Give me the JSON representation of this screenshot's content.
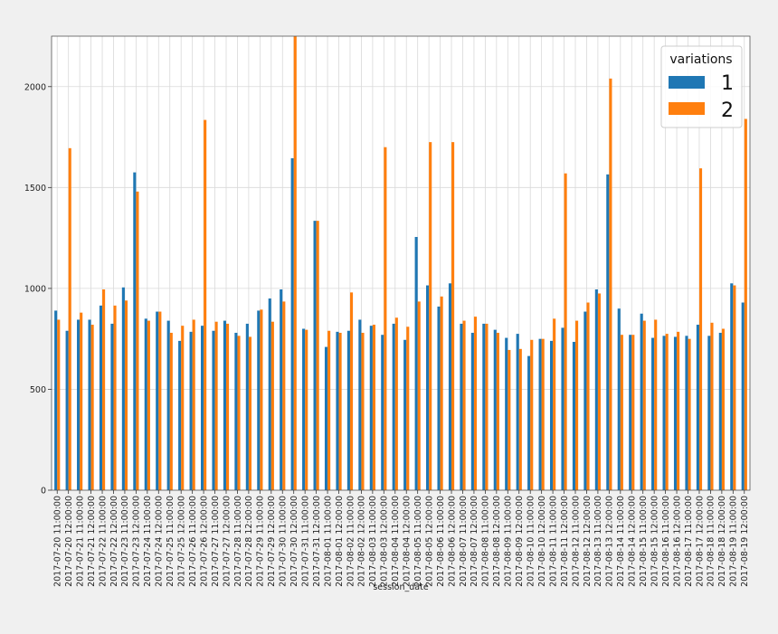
{
  "chart_data": {
    "type": "bar",
    "xlabel": "session_date",
    "ylabel": "",
    "ylim": [
      0,
      2250
    ],
    "yticks": [
      0,
      500,
      1000,
      1500,
      2000
    ],
    "grid": true,
    "legend": {
      "title": "variations",
      "placement": "top-right"
    },
    "categories": [
      "2017-07-20 11:00:00",
      "2017-07-20 12:00:00",
      "2017-07-21 11:00:00",
      "2017-07-21 12:00:00",
      "2017-07-22 11:00:00",
      "2017-07-22 12:00:00",
      "2017-07-23 11:00:00",
      "2017-07-23 12:00:00",
      "2017-07-24 11:00:00",
      "2017-07-24 12:00:00",
      "2017-07-25 11:00:00",
      "2017-07-25 12:00:00",
      "2017-07-26 11:00:00",
      "2017-07-26 12:00:00",
      "2017-07-27 11:00:00",
      "2017-07-27 12:00:00",
      "2017-07-28 11:00:00",
      "2017-07-28 12:00:00",
      "2017-07-29 11:00:00",
      "2017-07-29 12:00:00",
      "2017-07-30 11:00:00",
      "2017-07-30 12:00:00",
      "2017-07-31 11:00:00",
      "2017-07-31 12:00:00",
      "2017-08-01 11:00:00",
      "2017-08-01 12:00:00",
      "2017-08-02 11:00:00",
      "2017-08-02 12:00:00",
      "2017-08-03 11:00:00",
      "2017-08-03 12:00:00",
      "2017-08-04 11:00:00",
      "2017-08-04 12:00:00",
      "2017-08-05 11:00:00",
      "2017-08-05 12:00:00",
      "2017-08-06 11:00:00",
      "2017-08-06 12:00:00",
      "2017-08-07 11:00:00",
      "2017-08-07 12:00:00",
      "2017-08-08 11:00:00",
      "2017-08-08 12:00:00",
      "2017-08-09 11:00:00",
      "2017-08-09 12:00:00",
      "2017-08-10 11:00:00",
      "2017-08-10 12:00:00",
      "2017-08-11 11:00:00",
      "2017-08-11 12:00:00",
      "2017-08-12 11:00:00",
      "2017-08-12 12:00:00",
      "2017-08-13 11:00:00",
      "2017-08-13 12:00:00",
      "2017-08-14 11:00:00",
      "2017-08-14 12:00:00",
      "2017-08-15 11:00:00",
      "2017-08-15 12:00:00",
      "2017-08-16 11:00:00",
      "2017-08-16 12:00:00",
      "2017-08-17 11:00:00",
      "2017-08-17 12:00:00",
      "2017-08-18 11:00:00",
      "2017-08-18 12:00:00",
      "2017-08-19 11:00:00",
      "2017-08-19 12:00:00"
    ],
    "series": [
      {
        "name": "1",
        "color": "#1f77b4",
        "values": [
          890,
          790,
          845,
          845,
          915,
          825,
          1005,
          1575,
          850,
          885,
          840,
          740,
          785,
          815,
          790,
          840,
          780,
          825,
          890,
          950,
          995,
          1645,
          800,
          1335,
          710,
          785,
          790,
          845,
          815,
          770,
          825,
          745,
          1255,
          1015,
          910,
          1025,
          825,
          780,
          825,
          795,
          755,
          775,
          665,
          750,
          740,
          805,
          735,
          885,
          995,
          1565,
          900,
          770,
          875,
          755,
          765,
          760,
          765,
          820,
          765,
          780,
          1025,
          930
        ]
      },
      {
        "name": "2",
        "color": "#ff7f0e",
        "values": [
          845,
          1695,
          880,
          820,
          995,
          915,
          940,
          1480,
          840,
          885,
          780,
          815,
          845,
          1835,
          835,
          825,
          765,
          760,
          895,
          835,
          935,
          2250,
          795,
          1335,
          790,
          780,
          980,
          780,
          820,
          1700,
          855,
          810,
          935,
          1725,
          960,
          1725,
          840,
          860,
          825,
          780,
          695,
          700,
          745,
          750,
          850,
          1570,
          840,
          930,
          975,
          2040,
          770,
          770,
          840,
          845,
          775,
          785,
          750,
          1595,
          830,
          800,
          1015,
          1840
        ]
      }
    ]
  }
}
